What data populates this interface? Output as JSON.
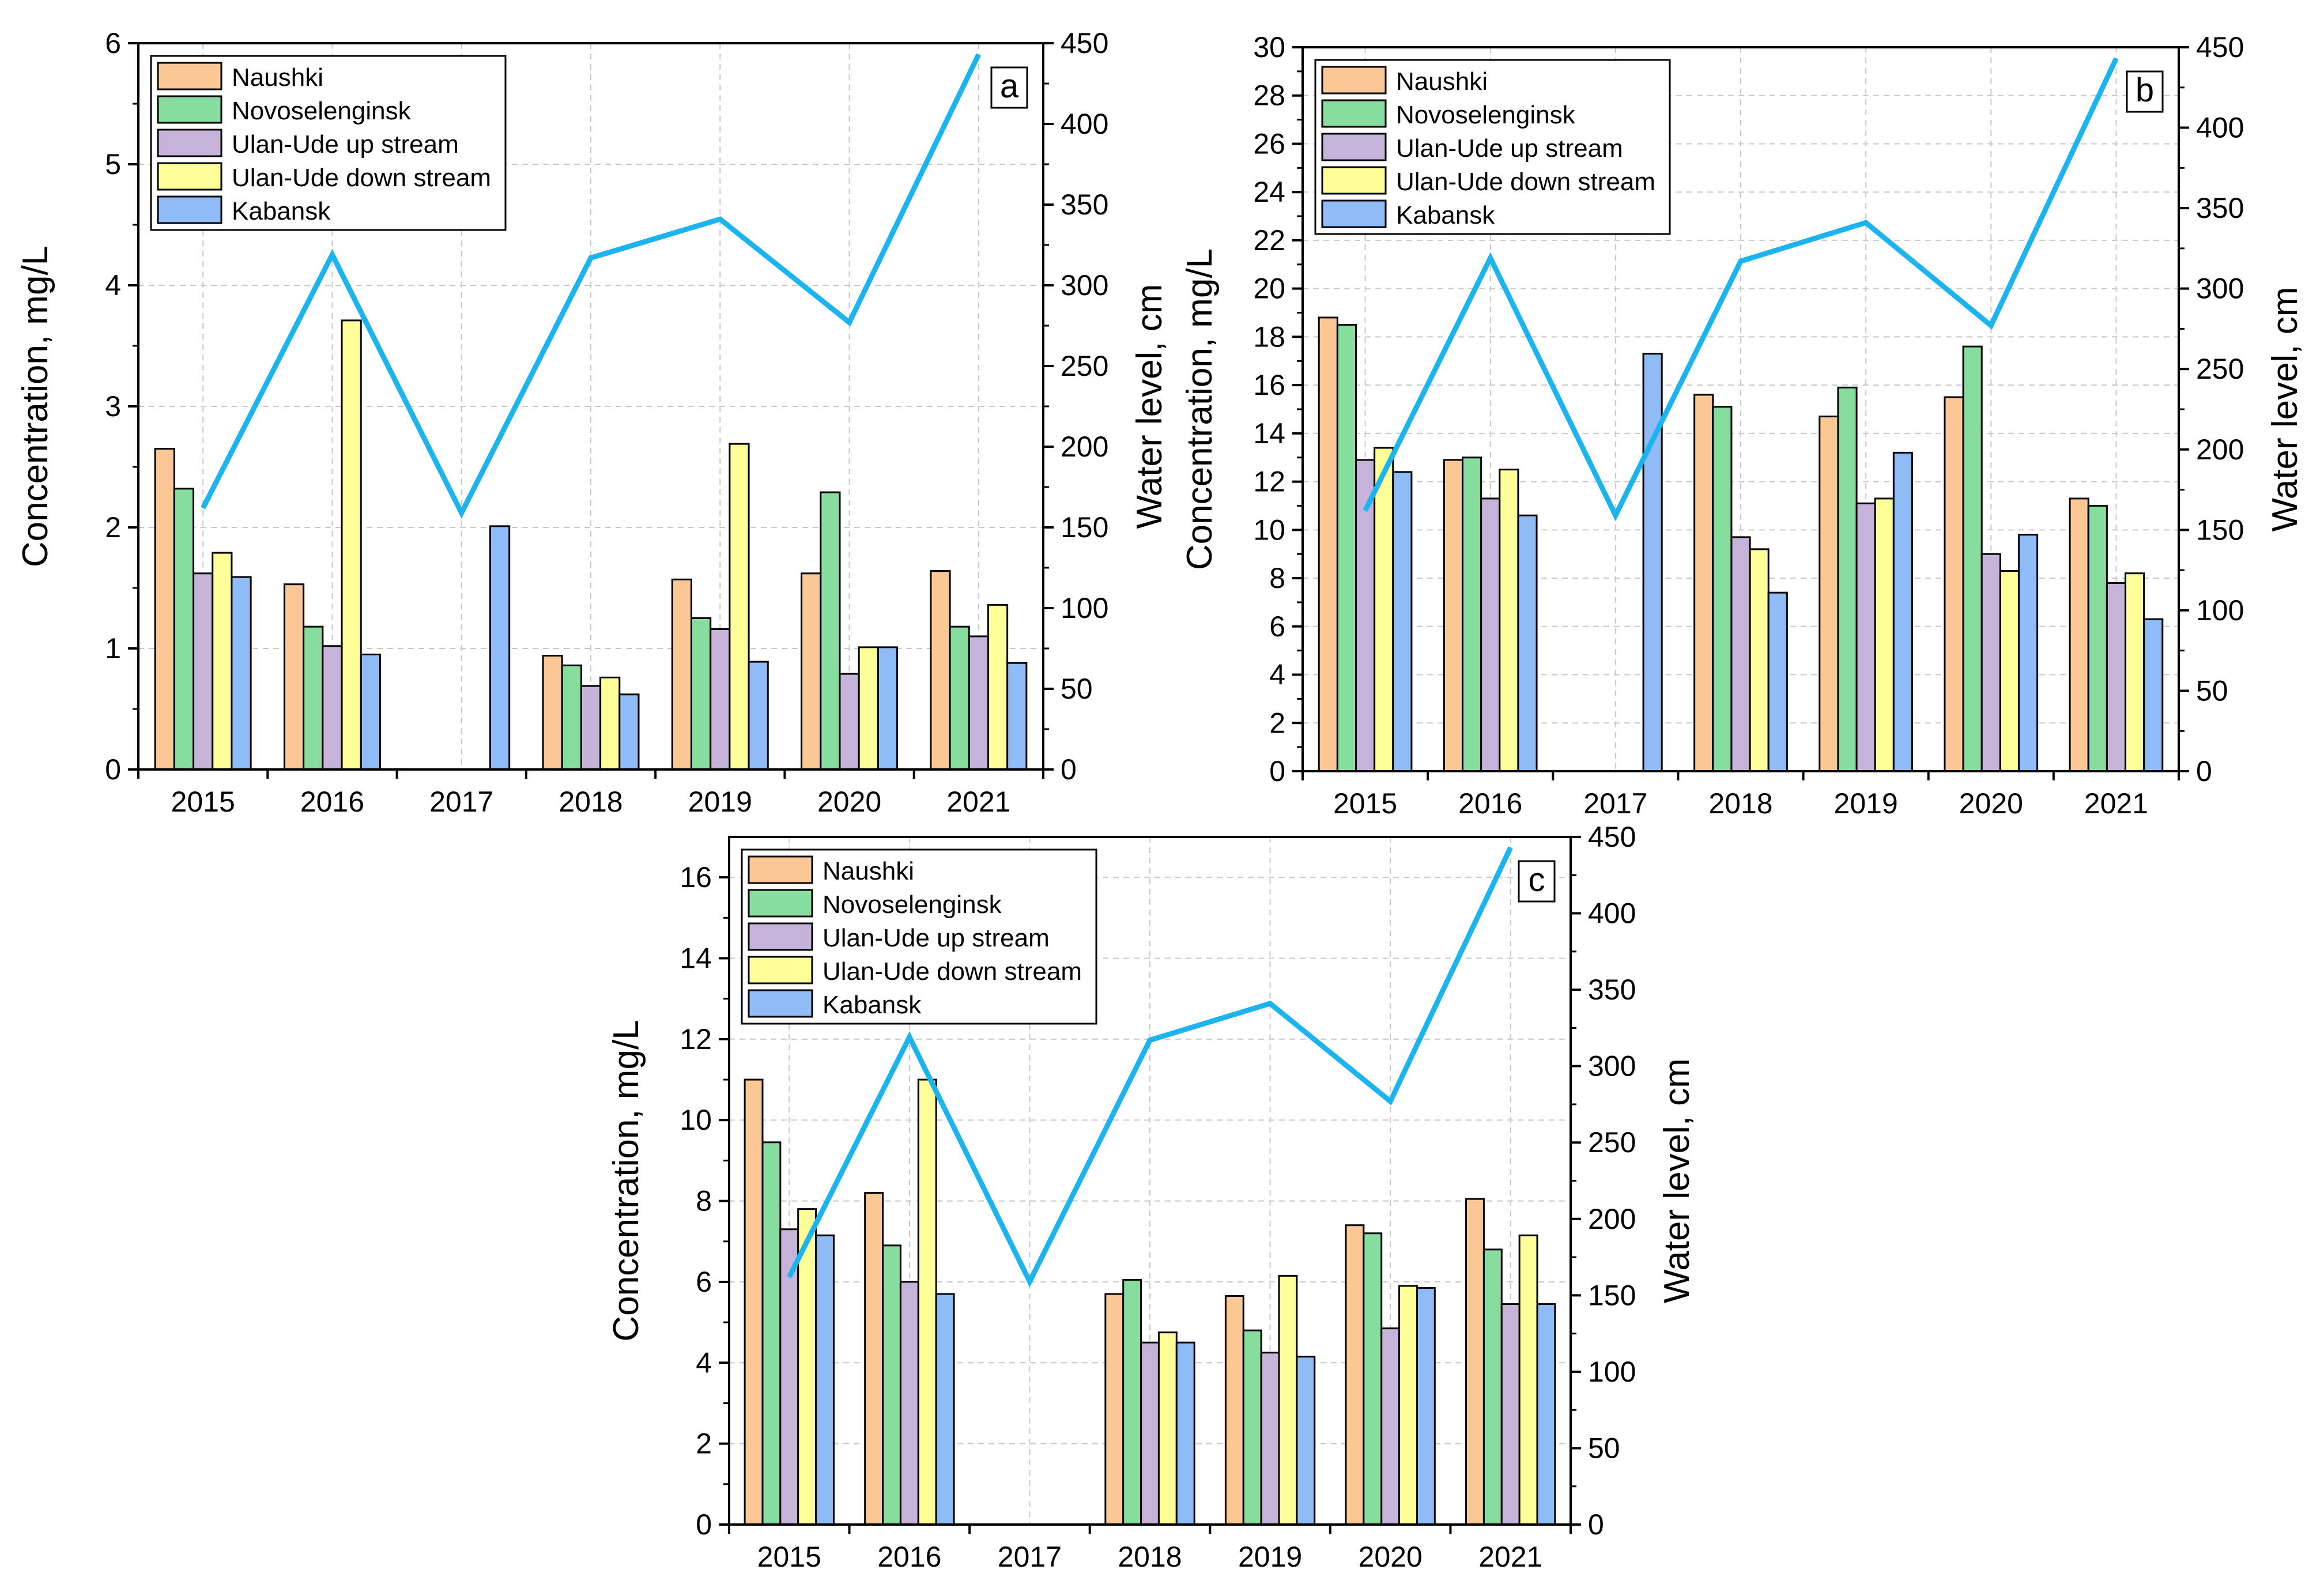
{
  "colors": {
    "Naushki": "#fbc895",
    "Novoselenginsk": "#86dd9e",
    "Ulan-Ude up stream": "#c6b3da",
    "Ulan-Ude down stream": "#ffff99",
    "Kabansk": "#8fbbf7",
    "water_level": "#1bb4ef",
    "grid": "#c8c8c8"
  },
  "chart_data": [
    {
      "type": "bar",
      "panel_label": "a",
      "title": "",
      "xlabel": "",
      "ylabel": "Concentration, mg/L",
      "y2label": "Water level, cm",
      "ylim": [
        0,
        6
      ],
      "y_ticks": [
        0,
        1,
        2,
        3,
        4,
        5,
        6
      ],
      "y2lim": [
        0,
        450
      ],
      "y2_ticks": [
        0,
        50,
        100,
        150,
        200,
        250,
        300,
        350,
        400,
        450
      ],
      "categories": [
        "2015",
        "2016",
        "2017",
        "2018",
        "2019",
        "2020",
        "2021"
      ],
      "legend_position": "top-left",
      "series": [
        {
          "name": "Naushki",
          "values": [
            2.65,
            1.53,
            null,
            0.94,
            1.57,
            1.62,
            1.64
          ]
        },
        {
          "name": "Novoselenginsk",
          "values": [
            2.32,
            1.18,
            null,
            0.86,
            1.25,
            2.29,
            1.18
          ]
        },
        {
          "name": "Ulan-Ude up stream",
          "values": [
            1.62,
            1.02,
            null,
            0.69,
            1.16,
            0.79,
            1.1
          ]
        },
        {
          "name": "Ulan-Ude down stream",
          "values": [
            1.79,
            3.71,
            null,
            0.76,
            2.69,
            1.01,
            1.36
          ]
        },
        {
          "name": "Kabansk",
          "values": [
            1.59,
            0.95,
            2.01,
            0.62,
            0.89,
            1.01,
            0.88
          ]
        }
      ],
      "line": {
        "name": "Water level",
        "axis": "right",
        "values": [
          162,
          319,
          159,
          317,
          341,
          277,
          443
        ]
      }
    },
    {
      "type": "bar",
      "panel_label": "b",
      "title": "",
      "xlabel": "",
      "ylabel": "Concentration, mg/L",
      "y2label": "Water level, cm",
      "ylim": [
        0,
        30
      ],
      "y_ticks": [
        0,
        2,
        4,
        6,
        8,
        10,
        12,
        14,
        16,
        18,
        20,
        22,
        24,
        26,
        28,
        30
      ],
      "y2lim": [
        0,
        450
      ],
      "y2_ticks": [
        0,
        50,
        100,
        150,
        200,
        250,
        300,
        350,
        400,
        450
      ],
      "categories": [
        "2015",
        "2016",
        "2017",
        "2018",
        "2019",
        "2020",
        "2021"
      ],
      "legend_position": "top-left",
      "series": [
        {
          "name": "Naushki",
          "values": [
            18.8,
            12.9,
            null,
            15.6,
            14.7,
            15.5,
            11.3
          ]
        },
        {
          "name": "Novoselenginsk",
          "values": [
            18.5,
            13.0,
            null,
            15.1,
            15.9,
            17.6,
            11.0
          ]
        },
        {
          "name": "Ulan-Ude up stream",
          "values": [
            12.9,
            11.3,
            null,
            9.7,
            11.1,
            9.0,
            7.8
          ]
        },
        {
          "name": "Ulan-Ude down stream",
          "values": [
            13.4,
            12.5,
            null,
            9.2,
            11.3,
            8.3,
            8.2
          ]
        },
        {
          "name": "Kabansk",
          "values": [
            12.4,
            10.6,
            17.3,
            7.4,
            13.2,
            9.8,
            6.3
          ]
        }
      ],
      "line": {
        "name": "Water level",
        "axis": "right",
        "values": [
          162,
          319,
          159,
          317,
          341,
          277,
          443
        ]
      }
    },
    {
      "type": "bar",
      "panel_label": "c",
      "title": "",
      "xlabel": "",
      "ylabel": "Concentration, mg/L",
      "y2label": "Water level, cm",
      "ylim": [
        0,
        17
      ],
      "y_ticks": [
        0,
        2,
        4,
        6,
        8,
        10,
        12,
        14,
        16
      ],
      "y2lim": [
        0,
        450
      ],
      "y2_ticks": [
        0,
        50,
        100,
        150,
        200,
        250,
        300,
        350,
        400,
        450
      ],
      "categories": [
        "2015",
        "2016",
        "2017",
        "2018",
        "2019",
        "2020",
        "2021"
      ],
      "legend_position": "top-left",
      "series": [
        {
          "name": "Naushki",
          "values": [
            11.0,
            8.2,
            null,
            5.7,
            5.65,
            7.4,
            8.05
          ]
        },
        {
          "name": "Novoselenginsk",
          "values": [
            9.45,
            6.9,
            null,
            6.05,
            4.8,
            7.2,
            6.8
          ]
        },
        {
          "name": "Ulan-Ude up stream",
          "values": [
            7.3,
            6.0,
            null,
            4.5,
            4.25,
            4.85,
            5.45
          ]
        },
        {
          "name": "Ulan-Ude down stream",
          "values": [
            7.8,
            11.0,
            null,
            4.75,
            6.15,
            5.9,
            7.15
          ]
        },
        {
          "name": "Kabansk",
          "values": [
            7.15,
            5.7,
            null,
            4.5,
            4.15,
            5.85,
            5.45
          ]
        }
      ],
      "line": {
        "name": "Water level",
        "axis": "right",
        "values": [
          162,
          319,
          159,
          317,
          341,
          277,
          443
        ]
      }
    }
  ]
}
